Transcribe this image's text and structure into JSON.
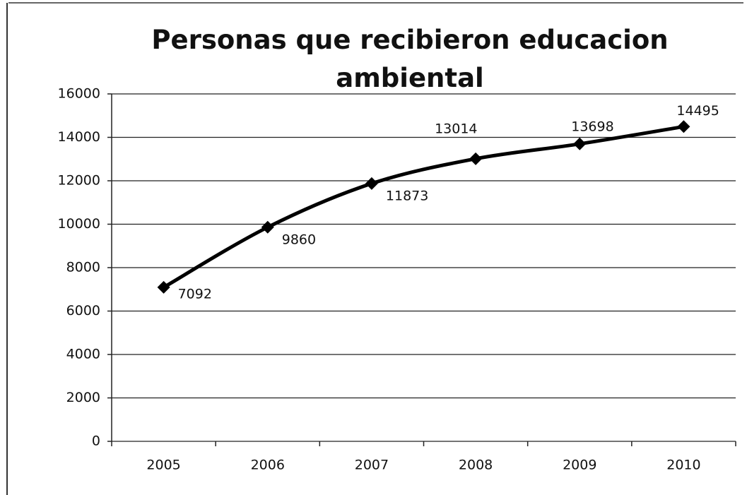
{
  "chart_data": {
    "type": "line",
    "title": "Personas que recibieron educacion ambiental",
    "categories": [
      "2005",
      "2006",
      "2007",
      "2008",
      "2009",
      "2010"
    ],
    "values": [
      7092,
      9860,
      11873,
      13014,
      13698,
      14495
    ],
    "color": "#000000",
    "ylim": [
      0,
      16000
    ],
    "yticks": [
      0,
      2000,
      4000,
      6000,
      8000,
      10000,
      12000,
      14000,
      16000
    ],
    "grid": true
  }
}
